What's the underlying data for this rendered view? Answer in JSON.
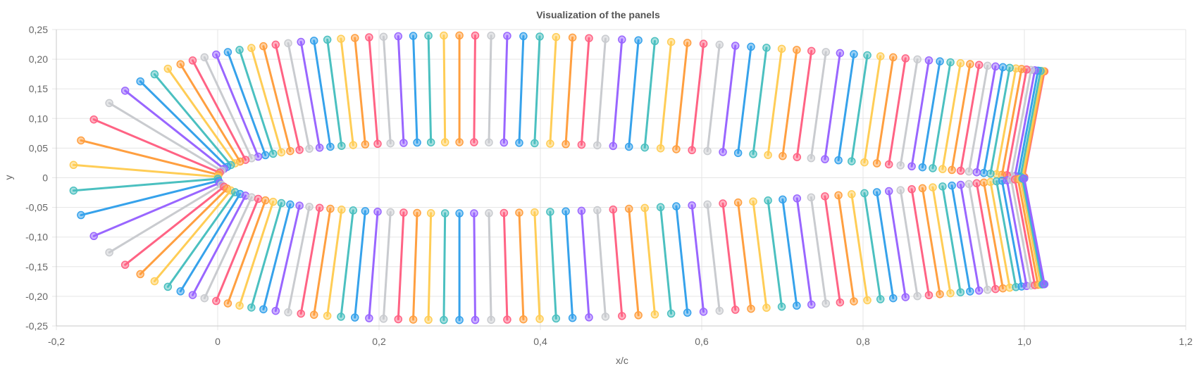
{
  "chart_data": {
    "type": "line",
    "title": "Visualization of the panels",
    "xlabel": "x/c",
    "ylabel": "y",
    "xlim": [
      -0.2,
      1.2
    ],
    "ylim": [
      -0.25,
      0.25
    ],
    "grid": true,
    "legend": "none",
    "x_ticks": [
      -0.2,
      0,
      0.2,
      0.4,
      0.6,
      0.8,
      1.0,
      1.2
    ],
    "x_tick_labels": [
      "-0,2",
      "0",
      "0,2",
      "0,4",
      "0,6",
      "0,8",
      "1,0",
      "1,2"
    ],
    "y_ticks": [
      0.25,
      0.2,
      0.15,
      0.1,
      0.05,
      0,
      -0.05,
      -0.1,
      -0.15,
      -0.2,
      -0.25
    ],
    "y_tick_labels": [
      "0,25",
      "0,20",
      "0,15",
      "0,10",
      "0,05",
      "0",
      "-0,05",
      "-0,10",
      "-0,15",
      "-0,20",
      "-0,25"
    ],
    "colors": [
      "#ff6384",
      "#ff9f40",
      "#ffcd56",
      "#4bc0c0",
      "#36a2eb",
      "#9966ff",
      "#c9cbcf"
    ],
    "panels": {
      "count": 160,
      "airfoil_max_thickness": 0.12,
      "normal_length": 0.18,
      "x_start": 0.0,
      "x_end": 1.0
    }
  }
}
